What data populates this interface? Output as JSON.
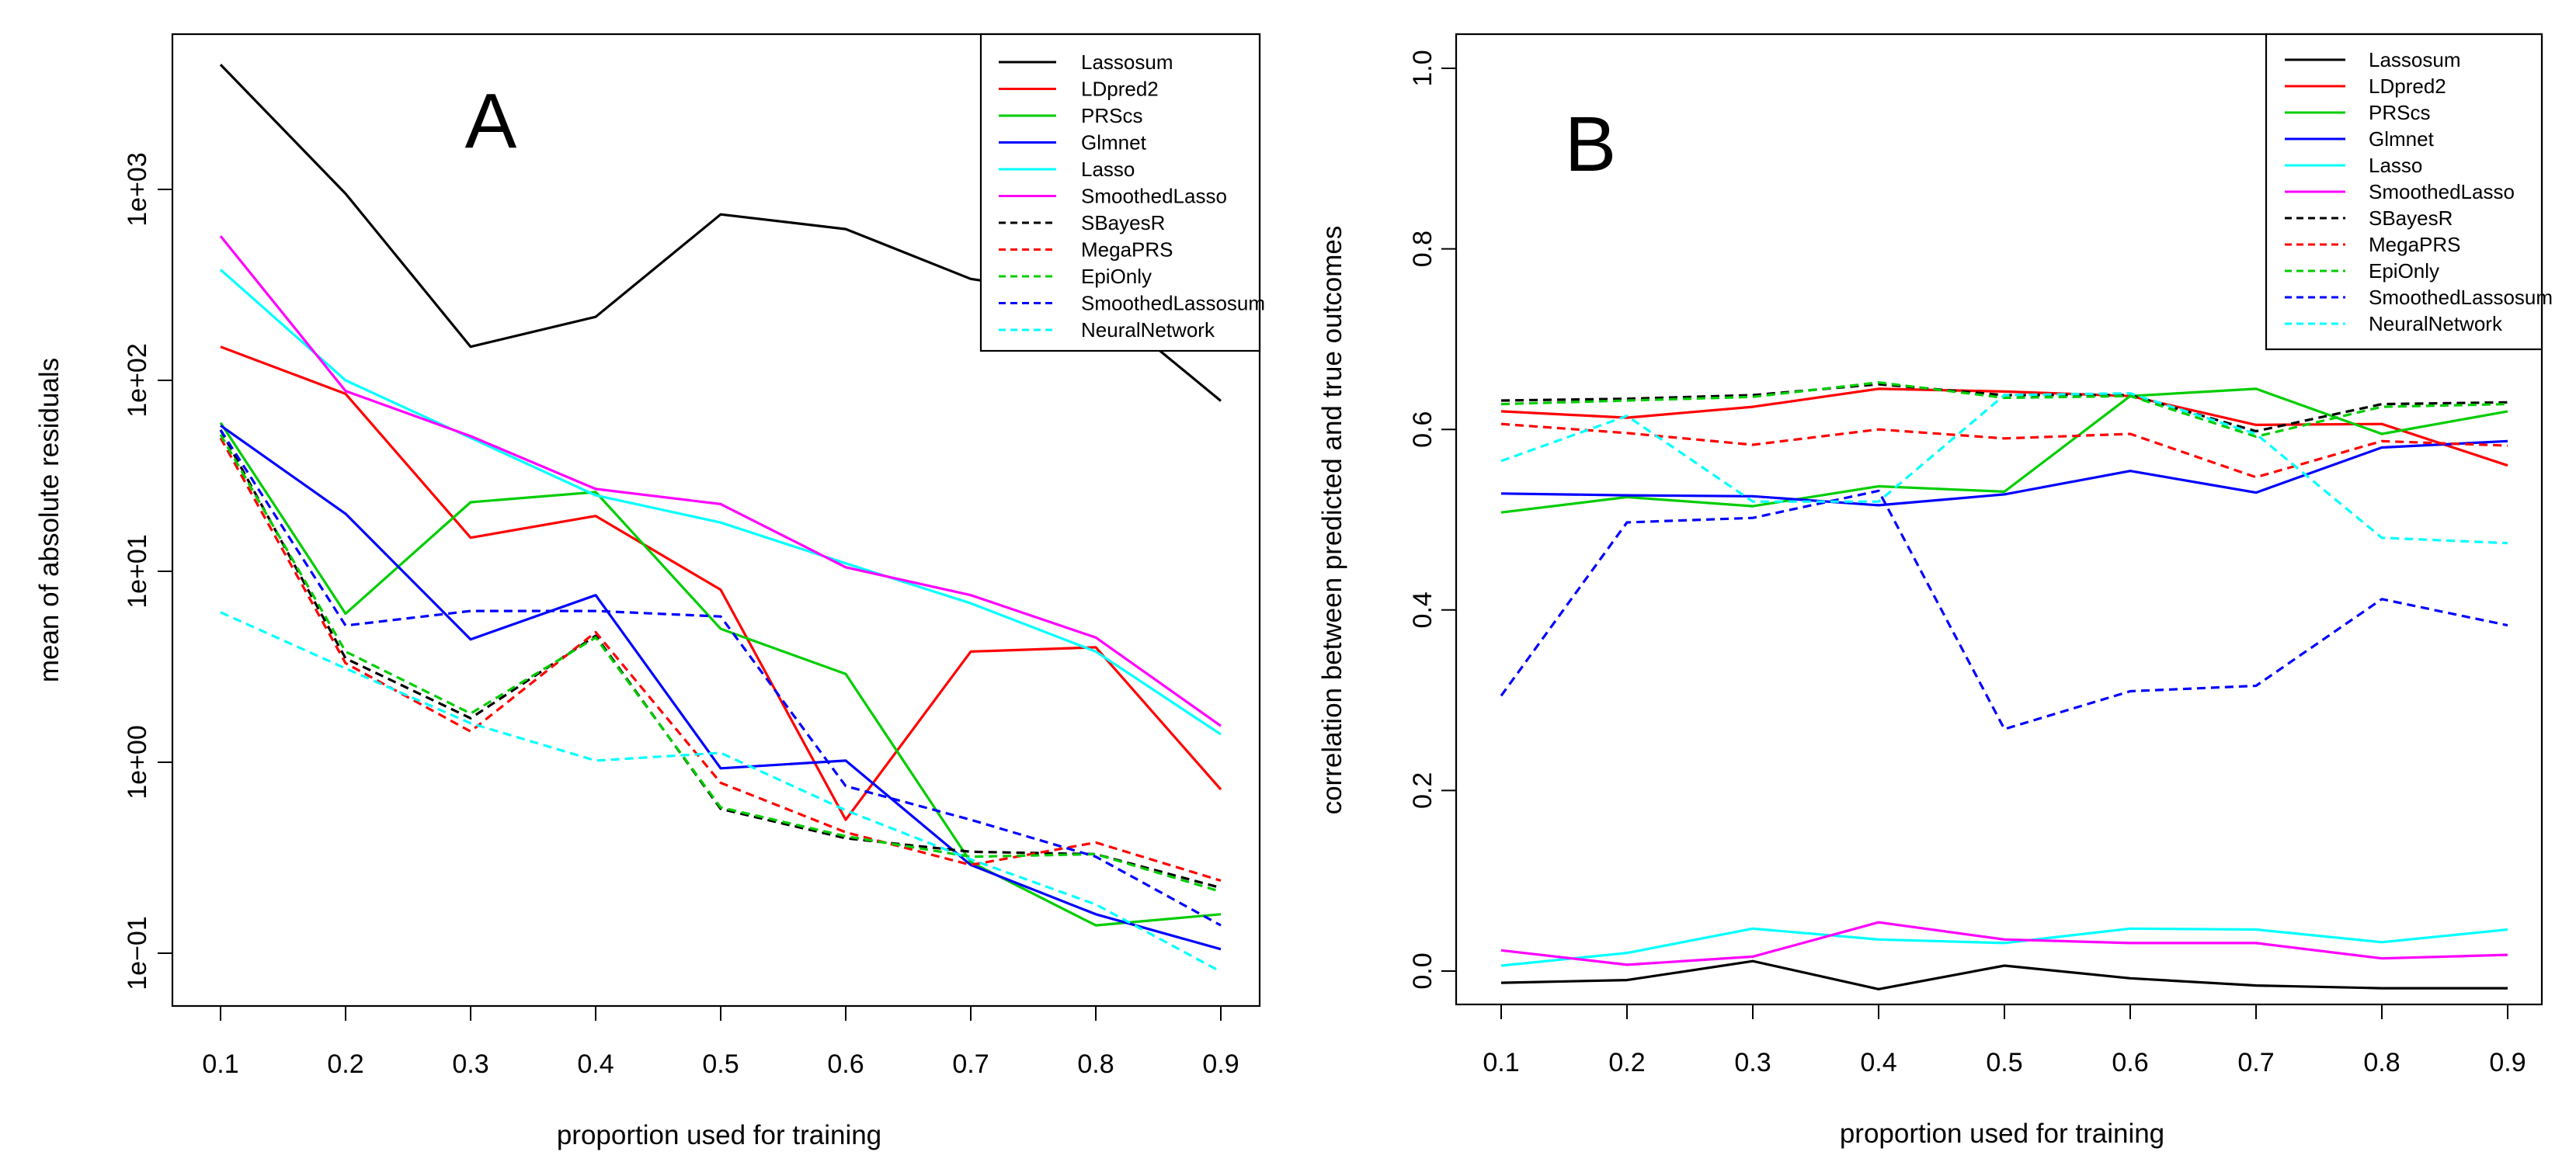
{
  "chart_data": [
    {
      "type": "line",
      "panel_label": "A",
      "xlabel": "proportion used for training",
      "ylabel": "mean of absolute residuals",
      "yscale": "log",
      "x": [
        0.1,
        0.2,
        0.3,
        0.4,
        0.5,
        0.6,
        0.7,
        0.8,
        0.9
      ],
      "x_tick_labels": [
        "0.1",
        "0.2",
        "0.3",
        "0.4",
        "0.5",
        "0.6",
        "0.7",
        "0.8",
        "0.9"
      ],
      "xlim": [
        0.07,
        0.94
      ],
      "ylim": [
        0.055,
        7500
      ],
      "y_ticks": [
        0.1,
        1,
        10,
        100,
        1000
      ],
      "y_tick_labels": [
        "1e−01",
        "1e+00",
        "1e+01",
        "1e+02",
        "1e+03"
      ],
      "legend_position": "top-right",
      "series": [
        {
          "name": "Lassosum",
          "color": "#000000",
          "dash": "solid",
          "values": [
            4500,
            950,
            150,
            215,
            740,
            620,
            340,
            270,
            78
          ]
        },
        {
          "name": "LDpred2",
          "color": "#ff0000",
          "dash": "solid",
          "values": [
            150,
            85,
            15,
            19.5,
            8,
            0.5,
            3.8,
            4,
            0.72
          ]
        },
        {
          "name": "PRScs",
          "color": "#00cd00",
          "dash": "solid",
          "values": [
            60,
            6,
            23,
            26,
            5,
            2.9,
            0.3,
            0.14,
            0.16
          ]
        },
        {
          "name": "Glmnet",
          "color": "#0000ff",
          "dash": "solid",
          "values": [
            58,
            20,
            4.4,
            7.5,
            0.93,
            1.02,
            0.29,
            0.16,
            0.105
          ]
        },
        {
          "name": "Lasso",
          "color": "#00ffff",
          "dash": "solid",
          "values": [
            380,
            100,
            50,
            25,
            18,
            11,
            6.8,
            3.8,
            1.4
          ]
        },
        {
          "name": "SmoothedLasso",
          "color": "#ff00ff",
          "dash": "solid",
          "values": [
            570,
            88,
            51,
            27,
            22.5,
            10.5,
            7.5,
            4.5,
            1.55
          ]
        },
        {
          "name": "SBayesR",
          "color": "#000000",
          "dash": "dashed",
          "values": [
            55,
            3.5,
            1.7,
            4.6,
            0.57,
            0.4,
            0.34,
            0.33,
            0.22
          ]
        },
        {
          "name": "MegaPRS",
          "color": "#ff0000",
          "dash": "dashed",
          "values": [
            50,
            3.3,
            1.45,
            4.8,
            0.78,
            0.43,
            0.29,
            0.38,
            0.24
          ]
        },
        {
          "name": "EpiOnly",
          "color": "#00cd00",
          "dash": "dashed",
          "values": [
            52,
            3.8,
            1.8,
            4.5,
            0.58,
            0.41,
            0.32,
            0.33,
            0.21
          ]
        },
        {
          "name": "SmoothedLassosum",
          "color": "#0000ff",
          "dash": "dashed",
          "values": [
            55,
            5.2,
            6.2,
            6.2,
            5.8,
            0.75,
            0.5,
            0.32,
            0.14
          ]
        },
        {
          "name": "NeuralNetwork",
          "color": "#00ffff",
          "dash": "dashed",
          "values": [
            6.1,
            3.1,
            1.6,
            1.02,
            1.12,
            0.56,
            0.31,
            0.18,
            0.08
          ]
        }
      ]
    },
    {
      "type": "line",
      "panel_label": "B",
      "xlabel": "proportion used for training",
      "ylabel": "correlation between predicted and true outcomes",
      "yscale": "linear",
      "x": [
        0.1,
        0.2,
        0.3,
        0.4,
        0.5,
        0.6,
        0.7,
        0.8,
        0.9
      ],
      "x_tick_labels": [
        "0.1",
        "0.2",
        "0.3",
        "0.4",
        "0.5",
        "0.6",
        "0.7",
        "0.8",
        "0.9"
      ],
      "xlim": [
        0.07,
        0.94
      ],
      "ylim": [
        -0.04,
        1.04
      ],
      "y_ticks": [
        0.0,
        0.2,
        0.4,
        0.6,
        0.8,
        1.0
      ],
      "y_tick_labels": [
        "0.0",
        "0.2",
        "0.4",
        "0.6",
        "0.8",
        "1.0"
      ],
      "legend_position": "top-right",
      "series": [
        {
          "name": "Lassosum",
          "color": "#000000",
          "dash": "solid",
          "values": [
            -0.013,
            -0.01,
            0.011,
            -0.02,
            0.006,
            -0.008,
            -0.016,
            -0.019,
            -0.019
          ]
        },
        {
          "name": "LDpred2",
          "color": "#ff0000",
          "dash": "solid",
          "values": [
            0.62,
            0.613,
            0.625,
            0.645,
            0.642,
            0.637,
            0.605,
            0.606,
            0.56
          ]
        },
        {
          "name": "PRScs",
          "color": "#00cd00",
          "dash": "solid",
          "values": [
            0.508,
            0.525,
            0.515,
            0.537,
            0.531,
            0.637,
            0.645,
            0.595,
            0.62
          ]
        },
        {
          "name": "Glmnet",
          "color": "#0000ff",
          "dash": "solid",
          "values": [
            0.529,
            0.527,
            0.526,
            0.516,
            0.528,
            0.554,
            0.53,
            0.58,
            0.587
          ]
        },
        {
          "name": "Lasso",
          "color": "#00ffff",
          "dash": "solid",
          "values": [
            0.006,
            0.02,
            0.047,
            0.035,
            0.031,
            0.047,
            0.046,
            0.032,
            0.046
          ]
        },
        {
          "name": "SmoothedLasso",
          "color": "#ff00ff",
          "dash": "solid",
          "values": [
            0.023,
            0.007,
            0.016,
            0.054,
            0.035,
            0.031,
            0.031,
            0.014,
            0.018
          ]
        },
        {
          "name": "SBayesR",
          "color": "#000000",
          "dash": "dashed",
          "values": [
            0.632,
            0.634,
            0.638,
            0.65,
            0.638,
            0.638,
            0.598,
            0.628,
            0.63
          ]
        },
        {
          "name": "MegaPRS",
          "color": "#ff0000",
          "dash": "dashed",
          "values": [
            0.606,
            0.596,
            0.583,
            0.6,
            0.59,
            0.595,
            0.547,
            0.587,
            0.582
          ]
        },
        {
          "name": "EpiOnly",
          "color": "#00cd00",
          "dash": "dashed",
          "values": [
            0.628,
            0.632,
            0.636,
            0.652,
            0.635,
            0.637,
            0.592,
            0.625,
            0.628
          ]
        },
        {
          "name": "SmoothedLassosum",
          "color": "#0000ff",
          "dash": "dashed",
          "values": [
            0.305,
            0.497,
            0.502,
            0.532,
            0.268,
            0.31,
            0.316,
            0.412,
            0.383
          ]
        },
        {
          "name": "NeuralNetwork",
          "color": "#00ffff",
          "dash": "dashed",
          "values": [
            0.565,
            0.615,
            0.52,
            0.52,
            0.638,
            0.64,
            0.595,
            0.48,
            0.474
          ]
        }
      ]
    }
  ]
}
